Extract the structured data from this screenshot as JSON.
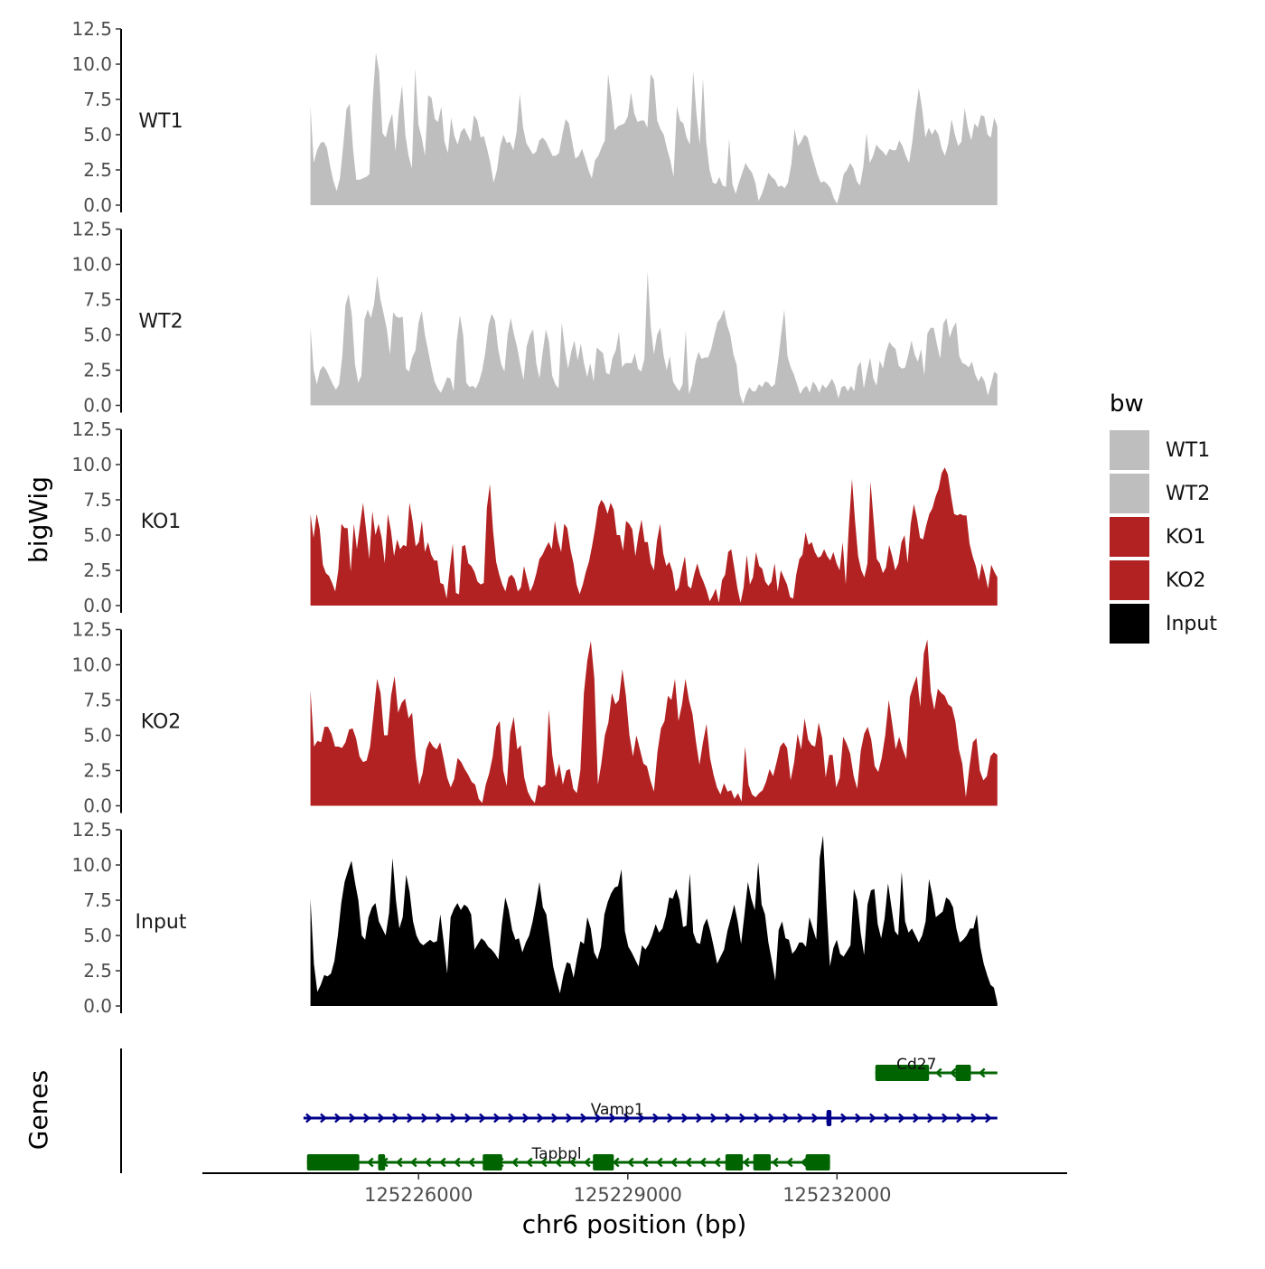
{
  "chart_data": {
    "type": "area",
    "ylabel": "bigWig",
    "xlabel": "chr6 position (bp)",
    "genes_label": "Genes",
    "legend_title": "bw",
    "xlim": [
      125222900,
      125235300
    ],
    "ylim": [
      0,
      12.5
    ],
    "y_ticks": [
      "0.0",
      "2.5",
      "5.0",
      "7.5",
      "10.0",
      "12.5"
    ],
    "x_ticks": [
      {
        "value": 125226000,
        "label": "125226000"
      },
      {
        "value": 125229000,
        "label": "125229000"
      },
      {
        "value": 125232000,
        "label": "125232000"
      }
    ],
    "series": [
      {
        "name": "WT1",
        "color": "#BEBEBE",
        "x_start": 125224450,
        "x_end": 125234300,
        "values": [
          7.0,
          3.0,
          3.9,
          4.4,
          4.5,
          4.1,
          2.8,
          1.7,
          1.0,
          1.9,
          4.2,
          6.8,
          7.2,
          4.0,
          1.8,
          1.8,
          1.9,
          2.0,
          2.2,
          7.4,
          10.8,
          9.5,
          5.1,
          4.8,
          5.8,
          6.5,
          3.8,
          6.7,
          8.5,
          5.0,
          3.5,
          2.6,
          9.7,
          5.7,
          4.8,
          3.5,
          7.8,
          7.6,
          6.1,
          5.9,
          7.0,
          4.5,
          3.7,
          6.2,
          4.9,
          4.3,
          5.2,
          5.5,
          5.0,
          4.5,
          6.4,
          6.0,
          4.8,
          4.9,
          4.0,
          3.0,
          1.6,
          2.5,
          4.2,
          5.0,
          4.4,
          4.5,
          3.9,
          5.2,
          7.9,
          5.5,
          4.4,
          4.0,
          3.6,
          3.8,
          4.6,
          4.8,
          4.5,
          4.0,
          3.5,
          3.5,
          3.7,
          5.0,
          6.1,
          5.8,
          4.5,
          3.3,
          3.5,
          4.0,
          3.3,
          2.5,
          1.9,
          3.2,
          3.5,
          4.1,
          4.6,
          9.3,
          7.5,
          5.3,
          5.6,
          5.7,
          5.8,
          6.3,
          8.0,
          6.5,
          5.9,
          6.0,
          6.0,
          5.5,
          9.3,
          8.9,
          6.0,
          5.4,
          5.0,
          4.0,
          3.2,
          2.0,
          7.0,
          6.0,
          5.8,
          4.8,
          4.3,
          9.5,
          6.5,
          4.3,
          9.0,
          4.5,
          2.5,
          1.6,
          1.5,
          2.0,
          1.4,
          1.3,
          4.7,
          1.5,
          0.8,
          1.6,
          2.3,
          3.0,
          2.6,
          2.3,
          1.6,
          0.3,
          0.8,
          1.5,
          2.3,
          2.0,
          1.8,
          1.3,
          1.4,
          1.2,
          1.6,
          2.9,
          5.4,
          4.2,
          4.5,
          5.0,
          4.8,
          3.8,
          3.0,
          2.2,
          1.6,
          1.7,
          1.5,
          1.2,
          0.5,
          0.1,
          1.0,
          2.2,
          2.5,
          3.0,
          2.6,
          1.7,
          1.4,
          2.7,
          5.1,
          3.0,
          3.5,
          4.3,
          4.0,
          3.8,
          3.5,
          4.0,
          3.9,
          3.9,
          4.6,
          4.2,
          3.5,
          3.0,
          4.5,
          6.6,
          8.3,
          6.8,
          4.8,
          5.5,
          5.0,
          5.4,
          5.0,
          4.0,
          3.5,
          4.4,
          6.1,
          5.0,
          4.2,
          4.5,
          6.9,
          5.5,
          4.6,
          5.8,
          5.5,
          6.4,
          6.3,
          5.0,
          4.8,
          6.2,
          5.6
        ]
      },
      {
        "name": "WT2",
        "color": "#BEBEBE",
        "x_start": 125224450,
        "x_end": 125234300,
        "values": [
          5.5,
          2.5,
          1.5,
          2.5,
          2.8,
          2.5,
          2.0,
          1.5,
          1.1,
          1.5,
          3.5,
          7.1,
          7.9,
          6.4,
          2.9,
          1.6,
          2.1,
          6.1,
          6.8,
          6.2,
          7.2,
          9.2,
          7.5,
          6.5,
          5.4,
          3.6,
          6.6,
          6.3,
          6.2,
          6.3,
          2.6,
          2.4,
          3.4,
          3.9,
          5.9,
          6.7,
          5.0,
          3.9,
          2.7,
          1.7,
          1.2,
          0.9,
          1.4,
          2.0,
          1.9,
          1.0,
          4.6,
          6.4,
          5.0,
          1.6,
          1.3,
          1.4,
          1.2,
          1.7,
          2.5,
          3.8,
          5.7,
          6.5,
          6.0,
          4.0,
          2.9,
          2.4,
          5.0,
          6.2,
          5.0,
          4.1,
          2.9,
          1.8,
          4.2,
          5.0,
          5.4,
          3.0,
          1.9,
          3.7,
          5.4,
          4.5,
          2.1,
          1.5,
          1.2,
          5.9,
          4.0,
          2.6,
          3.8,
          4.6,
          3.2,
          4.4,
          3.0,
          2.0,
          3.0,
          1.7,
          4.1,
          3.9,
          3.7,
          2.3,
          2.2,
          3.4,
          3.9,
          5.2,
          2.7,
          3.0,
          3.0,
          3.0,
          3.7,
          2.6,
          2.4,
          3.3,
          9.5,
          5.6,
          3.6,
          5.0,
          5.5,
          3.6,
          2.5,
          3.5,
          1.7,
          1.3,
          1.0,
          1.5,
          5.3,
          0.8,
          1.5,
          3.0,
          3.8,
          3.3,
          3.4,
          3.4,
          4.0,
          5.0,
          5.9,
          6.2,
          6.8,
          5.7,
          5.0,
          3.6,
          2.9,
          0.8,
          0.1,
          0.8,
          1.3,
          1.0,
          1.0,
          1.5,
          1.3,
          1.7,
          1.6,
          1.3,
          1.5,
          3.1,
          5.0,
          6.8,
          3.5,
          2.7,
          2.2,
          1.5,
          0.8,
          1.2,
          1.4,
          0.9,
          1.7,
          1.4,
          0.9,
          1.5,
          1.2,
          1.5,
          1.9,
          1.4,
          0.5,
          1.3,
          1.4,
          1.0,
          1.4,
          1.0,
          2.7,
          3.1,
          1.2,
          2.4,
          3.4,
          1.9,
          1.4,
          3.2,
          2.6,
          3.8,
          4.5,
          4.2,
          4.0,
          2.8,
          2.6,
          2.7,
          3.6,
          4.6,
          3.6,
          3.1,
          4.0,
          2.1,
          5.1,
          5.5,
          5.5,
          4.3,
          3.3,
          5.8,
          6.2,
          4.8,
          5.5,
          5.9,
          3.5,
          3.0,
          2.9,
          2.7,
          3.1,
          2.2,
          1.7,
          2.1,
          1.7,
          0.7,
          1.5,
          2.4,
          2.2
        ]
      },
      {
        "name": "KO1",
        "color": "#B22222",
        "x_start": 125224450,
        "x_end": 125234300,
        "values": [
          6.5,
          4.8,
          6.5,
          5.4,
          2.9,
          2.3,
          2.1,
          1.6,
          1.0,
          2.5,
          5.8,
          5.5,
          5.5,
          2.4,
          5.8,
          4.0,
          5.7,
          7.3,
          5.3,
          3.3,
          6.7,
          5.0,
          5.8,
          4.8,
          3.0,
          6.5,
          5.3,
          3.5,
          4.7,
          4.0,
          4.3,
          4.2,
          7.3,
          6.0,
          4.2,
          4.5,
          6.0,
          3.8,
          4.5,
          3.6,
          3.2,
          3.2,
          1.6,
          1.5,
          0.5,
          2.6,
          4.4,
          0.9,
          0.8,
          4.2,
          4.3,
          3.0,
          2.8,
          2.4,
          1.7,
          1.5,
          1.6,
          6.9,
          8.6,
          5.3,
          3.1,
          2.2,
          1.5,
          1.0,
          2.0,
          2.2,
          1.9,
          1.0,
          1.3,
          2.8,
          1.9,
          1.0,
          1.5,
          2.3,
          3.3,
          3.6,
          4.1,
          4.5,
          4.0,
          6.0,
          4.6,
          3.8,
          5.8,
          5.5,
          4.0,
          3.0,
          1.5,
          0.8,
          1.5,
          2.4,
          3.1,
          4.2,
          5.5,
          7.0,
          7.5,
          7.2,
          6.5,
          7.3,
          6.8,
          5.0,
          5.0,
          3.9,
          6.0,
          5.8,
          5.4,
          3.5,
          5.0,
          6.1,
          4.5,
          4.5,
          3.0,
          2.5,
          4.6,
          5.8,
          3.7,
          2.8,
          3.1,
          2.4,
          1.0,
          1.3,
          2.5,
          3.5,
          1.4,
          1.2,
          2.2,
          3.0,
          2.2,
          1.7,
          1.1,
          0.3,
          0.7,
          1.2,
          0.2,
          1.8,
          2.2,
          3.8,
          4.0,
          2.6,
          1.2,
          0.2,
          1.3,
          3.6,
          1.5,
          2.0,
          3.8,
          2.8,
          2.6,
          1.7,
          1.4,
          1.7,
          3.0,
          1.0,
          2.5,
          2.0,
          1.5,
          0.6,
          0.5,
          2.2,
          3.3,
          3.6,
          5.2,
          4.3,
          4.5,
          3.8,
          3.4,
          3.5,
          4.0,
          3.5,
          3.2,
          3.8,
          3.0,
          2.5,
          4.5,
          1.5,
          5.7,
          9.0,
          6.0,
          3.5,
          2.5,
          2.0,
          3.0,
          8.8,
          6.0,
          3.3,
          3.0,
          2.3,
          2.7,
          4.3,
          3.5,
          2.5,
          3.0,
          4.5,
          5.0,
          3.0,
          5.8,
          7.2,
          6.2,
          4.8,
          4.7,
          5.7,
          6.5,
          6.9,
          7.7,
          8.3,
          9.4,
          9.8,
          9.3,
          7.8,
          6.5,
          6.4,
          6.5,
          6.4,
          6.4,
          4.4,
          3.5,
          2.8,
          1.8,
          3.0,
          2.2,
          1.2,
          2.9,
          2.4,
          2.0
        ]
      },
      {
        "name": "KO2",
        "color": "#B22222",
        "x_start": 125224450,
        "x_end": 125234300,
        "values": [
          8.2,
          4.2,
          4.6,
          4.5,
          5.6,
          5.6,
          5.1,
          4.2,
          4.2,
          4.1,
          4.5,
          5.4,
          5.5,
          4.8,
          3.5,
          3.1,
          3.2,
          4.2,
          6.5,
          9.0,
          8.0,
          5.0,
          5.0,
          7.8,
          9.2,
          6.6,
          7.3,
          7.6,
          6.2,
          6.6,
          3.5,
          1.5,
          2.3,
          4.0,
          4.6,
          4.2,
          4.0,
          4.5,
          3.3,
          2.0,
          1.3,
          1.9,
          3.4,
          3.1,
          2.6,
          2.2,
          1.7,
          1.5,
          0.5,
          0.2,
          1.5,
          2.3,
          3.5,
          5.6,
          6.0,
          2.5,
          1.4,
          5.2,
          6.3,
          4.0,
          4.3,
          2.0,
          1.0,
          0.5,
          0.2,
          1.5,
          1.3,
          1.5,
          6.8,
          3.6,
          2.0,
          3.0,
          1.5,
          2.5,
          2.6,
          1.2,
          0.9,
          2.5,
          8.0,
          10.3,
          11.7,
          9.0,
          1.5,
          3.0,
          5.0,
          5.9,
          8.0,
          7.2,
          7.5,
          9.7,
          7.8,
          5.0,
          3.5,
          5.0,
          4.0,
          3.0,
          2.8,
          1.8,
          1.0,
          3.8,
          5.5,
          6.0,
          7.8,
          7.5,
          9.0,
          6.0,
          7.2,
          9.0,
          7.5,
          6.5,
          4.5,
          2.9,
          4.5,
          5.8,
          3.4,
          2.2,
          1.3,
          0.8,
          1.6,
          1.0,
          1.1,
          0.5,
          0.9,
          0.3,
          4.2,
          1.5,
          0.8,
          0.6,
          0.9,
          1.1,
          1.7,
          2.6,
          2.1,
          3.1,
          4.2,
          4.5,
          4.1,
          1.8,
          3.1,
          5.1,
          4.0,
          6.2,
          4.7,
          4.3,
          4.2,
          5.9,
          4.8,
          2.0,
          3.6,
          3.6,
          1.3,
          2.0,
          4.9,
          4.4,
          3.7,
          2.1,
          1.2,
          3.9,
          5.1,
          5.6,
          4.7,
          2.8,
          2.4,
          3.4,
          5.0,
          7.5,
          5.8,
          4.0,
          4.9,
          4.0,
          3.3,
          7.7,
          8.5,
          9.2,
          7.0,
          10.8,
          11.8,
          8.1,
          6.8,
          8.3,
          8.0,
          7.8,
          7.2,
          7.0,
          6.0,
          4.0,
          3.0,
          0.6,
          2.7,
          4.5,
          4.8,
          2.5,
          1.8,
          2.1,
          3.5,
          3.8,
          3.6
        ]
      },
      {
        "name": "Input",
        "color": "#000000",
        "x_start": 125224450,
        "x_end": 125234300,
        "values": [
          7.6,
          3.0,
          1.0,
          1.5,
          2.2,
          2.1,
          2.3,
          3.2,
          5.0,
          7.3,
          8.8,
          9.6,
          10.3,
          8.8,
          7.5,
          5.0,
          4.7,
          6.3,
          7.0,
          7.3,
          6.0,
          5.5,
          5.0,
          6.6,
          10.5,
          7.5,
          5.5,
          6.3,
          9.3,
          8.1,
          6.0,
          5.0,
          4.5,
          4.3,
          4.5,
          4.7,
          4.5,
          4.6,
          6.5,
          4.5,
          2.3,
          6.3,
          6.9,
          7.3,
          6.8,
          7.2,
          7.0,
          6.5,
          4.0,
          4.4,
          4.8,
          4.6,
          4.2,
          4.0,
          3.7,
          3.3,
          5.8,
          7.7,
          6.8,
          5.4,
          4.7,
          4.8,
          3.8,
          4.5,
          5.0,
          6.0,
          7.3,
          8.8,
          7.0,
          6.5,
          4.7,
          2.8,
          1.8,
          0.9,
          2.2,
          3.1,
          3.0,
          2.0,
          3.4,
          4.6,
          4.4,
          6.3,
          5.5,
          3.8,
          3.3,
          4.2,
          6.5,
          7.4,
          8.0,
          8.4,
          8.5,
          9.7,
          5.3,
          4.2,
          3.8,
          3.3,
          2.8,
          4.3,
          4.0,
          4.4,
          5.0,
          5.8,
          5.2,
          5.5,
          6.4,
          7.7,
          7.6,
          8.3,
          7.5,
          5.6,
          5.7,
          9.4,
          5.2,
          4.5,
          4.4,
          5.7,
          6.2,
          5.3,
          4.2,
          3.0,
          3.5,
          4.0,
          5.3,
          6.2,
          7.2,
          6.0,
          4.4,
          6.5,
          8.8,
          7.6,
          6.8,
          10.2,
          7.2,
          6.5,
          4.5,
          3.2,
          1.8,
          5.4,
          6.0,
          4.8,
          4.7,
          3.7,
          4.0,
          4.5,
          4.5,
          4.2,
          6.3,
          5.5,
          4.7,
          10.5,
          12.1,
          7.2,
          2.8,
          4.1,
          4.7,
          3.7,
          3.5,
          3.9,
          4.3,
          8.3,
          7.5,
          5.2,
          3.6,
          7.2,
          8.2,
          8.3,
          5.8,
          4.8,
          6.2,
          8.7,
          7.0,
          5.3,
          5.0,
          9.5,
          6.0,
          5.2,
          5.5,
          5.0,
          4.5,
          5.0,
          6.0,
          9.0,
          7.8,
          6.3,
          6.5,
          6.7,
          7.7,
          7.5,
          7.0,
          5.5,
          4.5,
          4.7,
          5.0,
          5.5,
          5.5,
          6.5,
          4.2,
          3.0,
          2.2,
          1.5,
          1.3,
          0.2
        ]
      }
    ],
    "genes": [
      {
        "name": "Cd27",
        "strand": "-",
        "color": "#006400",
        "start": 125232550,
        "end": 125234300,
        "exons": [
          [
            125232550,
            125233320
          ],
          [
            125233700,
            125233920
          ]
        ],
        "label_pos": 125233140
      },
      {
        "name": "Vamp1",
        "strand": "+",
        "color": "#00008B",
        "start": 125224350,
        "end": 125234300,
        "exons": [
          [
            125231850,
            125231920
          ]
        ],
        "label_pos": 125228850
      },
      {
        "name": "Tapbpl",
        "strand": "-",
        "color": "#006400",
        "start": 125224400,
        "end": 125231900,
        "exons": [
          [
            125224400,
            125225150
          ],
          [
            125225420,
            125225520
          ],
          [
            125226920,
            125227200
          ],
          [
            125228500,
            125228800
          ],
          [
            125230400,
            125230650
          ],
          [
            125230800,
            125231050
          ],
          [
            125231550,
            125231900
          ]
        ],
        "label_pos": 125227980
      }
    ]
  }
}
